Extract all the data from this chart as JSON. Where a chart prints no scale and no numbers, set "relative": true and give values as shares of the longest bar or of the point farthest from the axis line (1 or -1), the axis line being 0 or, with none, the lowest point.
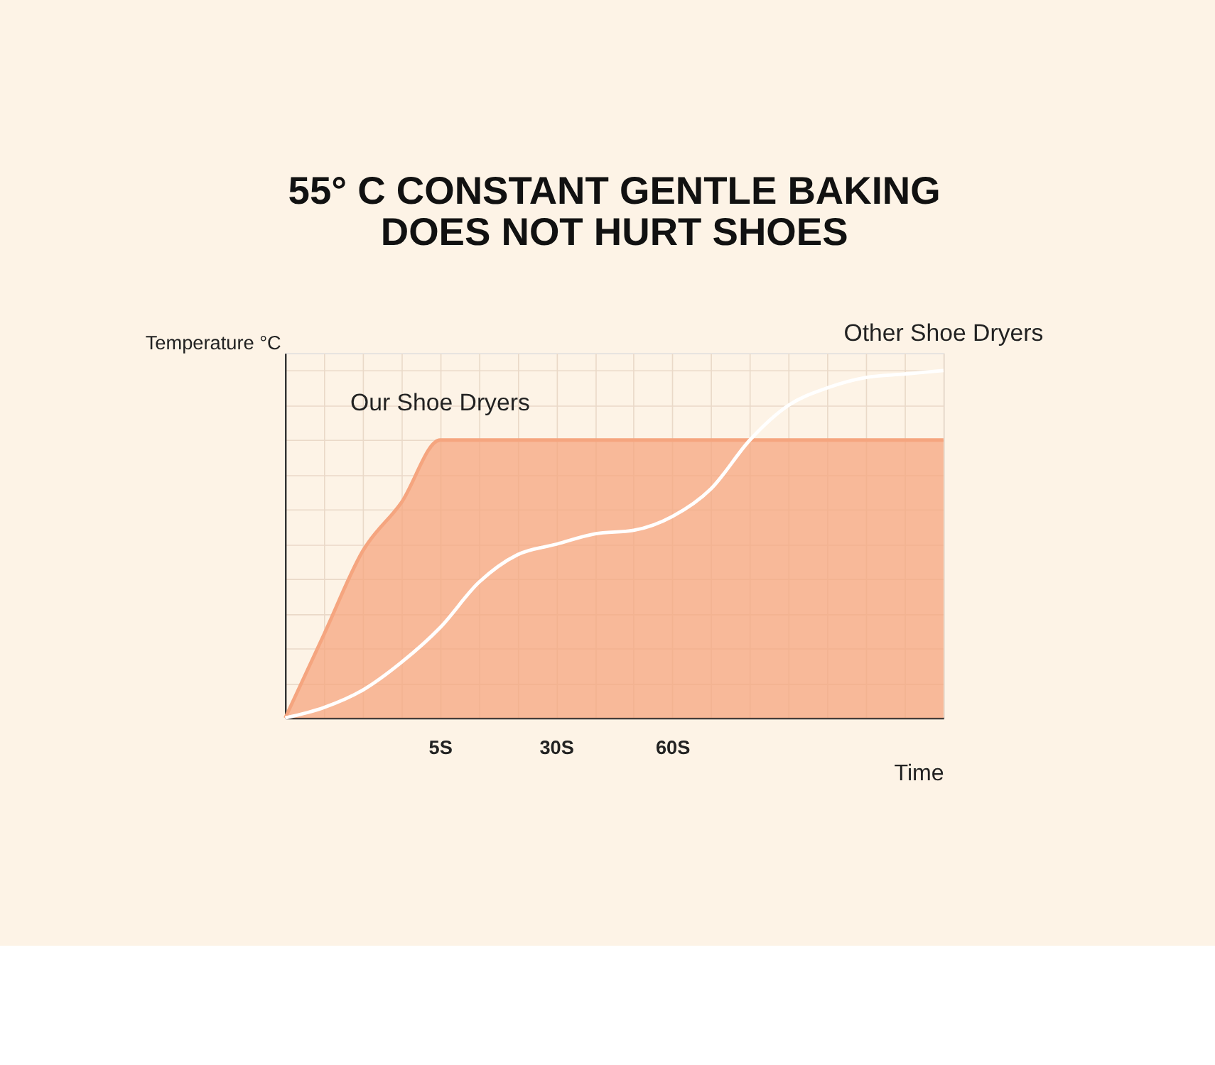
{
  "chart_data": {
    "type": "line",
    "title": "55° C CONSTANT GENTLE BAKING DOES NOT HURT SHOES",
    "xlabel": "Time",
    "ylabel": "Temperature °C",
    "relative": true,
    "tick_labels": "x",
    "grid": true,
    "legend": false,
    "categories": [
      null,
      null,
      null,
      null,
      "5S",
      null,
      null,
      "30S",
      null,
      null,
      "60S",
      null,
      null,
      null,
      null,
      null,
      null,
      null
    ],
    "series": [
      {
        "name": "Our Shoe Dryers",
        "type": "area",
        "color": "#f5a57f",
        "values": [
          0,
          0.24,
          0.48,
          0.62,
          0.8,
          0.8,
          0.8,
          0.8,
          0.8,
          0.8,
          0.8,
          0.8,
          0.8,
          0.8,
          0.8,
          0.8,
          0.8,
          0.8
        ]
      },
      {
        "name": "Other Shoe Dryers",
        "color": "#ffffff",
        "values": [
          0,
          0.03,
          0.08,
          0.16,
          0.26,
          0.39,
          0.47,
          0.5,
          0.53,
          0.54,
          0.58,
          0.66,
          0.8,
          0.9,
          0.95,
          0.98,
          0.99,
          1
        ]
      }
    ]
  }
}
